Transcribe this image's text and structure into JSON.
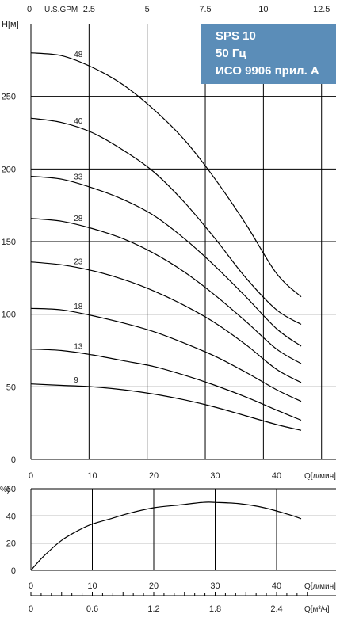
{
  "badge": {
    "line1": "SPS 10",
    "line2": "50 Гц",
    "line3": "ИСО 9906 прил. А",
    "color": "#5b8db8"
  },
  "chart_data": [
    {
      "type": "line",
      "name_text": "",
      "x_label": "Q[л/мин]",
      "y_label": "H[м]",
      "top_axis_label": "U.S.GPM",
      "xlim": [
        0,
        46
      ],
      "ylim": [
        0,
        300
      ],
      "x_ticks": [
        0,
        10,
        20,
        30,
        40
      ],
      "y_ticks": [
        0,
        50,
        100,
        150,
        200,
        250
      ],
      "top_ticks": [
        0,
        2.5,
        5,
        7.5,
        10,
        12.5
      ],
      "grid": true,
      "series": [
        {
          "name": "48",
          "label_x": 7,
          "x": [
            0,
            5,
            10,
            15,
            20,
            25,
            30,
            35,
            40,
            44
          ],
          "y": [
            280,
            278,
            270,
            258,
            241,
            220,
            193,
            162,
            128,
            112
          ]
        },
        {
          "name": "40",
          "label_x": 7,
          "x": [
            0,
            5,
            10,
            15,
            20,
            25,
            30,
            35,
            40,
            44
          ],
          "y": [
            235,
            232,
            225,
            213,
            198,
            177,
            152,
            125,
            103,
            93
          ]
        },
        {
          "name": "33",
          "label_x": 7,
          "x": [
            0,
            5,
            10,
            15,
            20,
            25,
            30,
            35,
            40,
            44
          ],
          "y": [
            195,
            193,
            187,
            179,
            168,
            152,
            133,
            112,
            90,
            78
          ]
        },
        {
          "name": "28",
          "label_x": 7,
          "x": [
            0,
            5,
            10,
            15,
            20,
            25,
            30,
            35,
            40,
            44
          ],
          "y": [
            166,
            164,
            159,
            152,
            142,
            129,
            113,
            95,
            76,
            66
          ]
        },
        {
          "name": "23",
          "label_x": 7,
          "x": [
            0,
            5,
            10,
            15,
            20,
            25,
            30,
            35,
            40,
            44
          ],
          "y": [
            136,
            134,
            130,
            124,
            116,
            106,
            94,
            79,
            62,
            53
          ]
        },
        {
          "name": "18",
          "label_x": 7,
          "x": [
            0,
            5,
            10,
            15,
            20,
            25,
            30,
            35,
            40,
            44
          ],
          "y": [
            104,
            103,
            99,
            94,
            88,
            80,
            71,
            60,
            48,
            40
          ]
        },
        {
          "name": "13",
          "label_x": 7,
          "x": [
            0,
            5,
            10,
            15,
            20,
            25,
            30,
            35,
            40,
            44
          ],
          "y": [
            76,
            75,
            72,
            68,
            64,
            58,
            51,
            43,
            34,
            27
          ]
        },
        {
          "name": "9",
          "label_x": 7,
          "x": [
            0,
            5,
            10,
            15,
            20,
            25,
            30,
            35,
            40,
            44
          ],
          "y": [
            52,
            51,
            50,
            48,
            45,
            41,
            36,
            30,
            24,
            20
          ]
        }
      ]
    },
    {
      "type": "line",
      "x_label": "Q[л/мин]",
      "y_label": "%)",
      "bottom_axis_label": "Q[м³/ч]",
      "xlim": [
        0,
        46
      ],
      "ylim": [
        0,
        60
      ],
      "x_ticks": [
        0,
        10,
        20,
        30,
        40
      ],
      "y_ticks": [
        0,
        20,
        40,
        60
      ],
      "m3_ticks": [
        0,
        0.6,
        1.2,
        1.8,
        2.4
      ],
      "grid": true,
      "series": [
        {
          "x": [
            0,
            2,
            5,
            8,
            10,
            13,
            16,
            20,
            24,
            28,
            30,
            34,
            38,
            42,
            44
          ],
          "y": [
            0,
            10,
            22,
            30,
            34,
            38,
            42,
            46,
            48,
            50,
            50,
            49,
            46,
            41,
            38
          ]
        }
      ]
    }
  ]
}
